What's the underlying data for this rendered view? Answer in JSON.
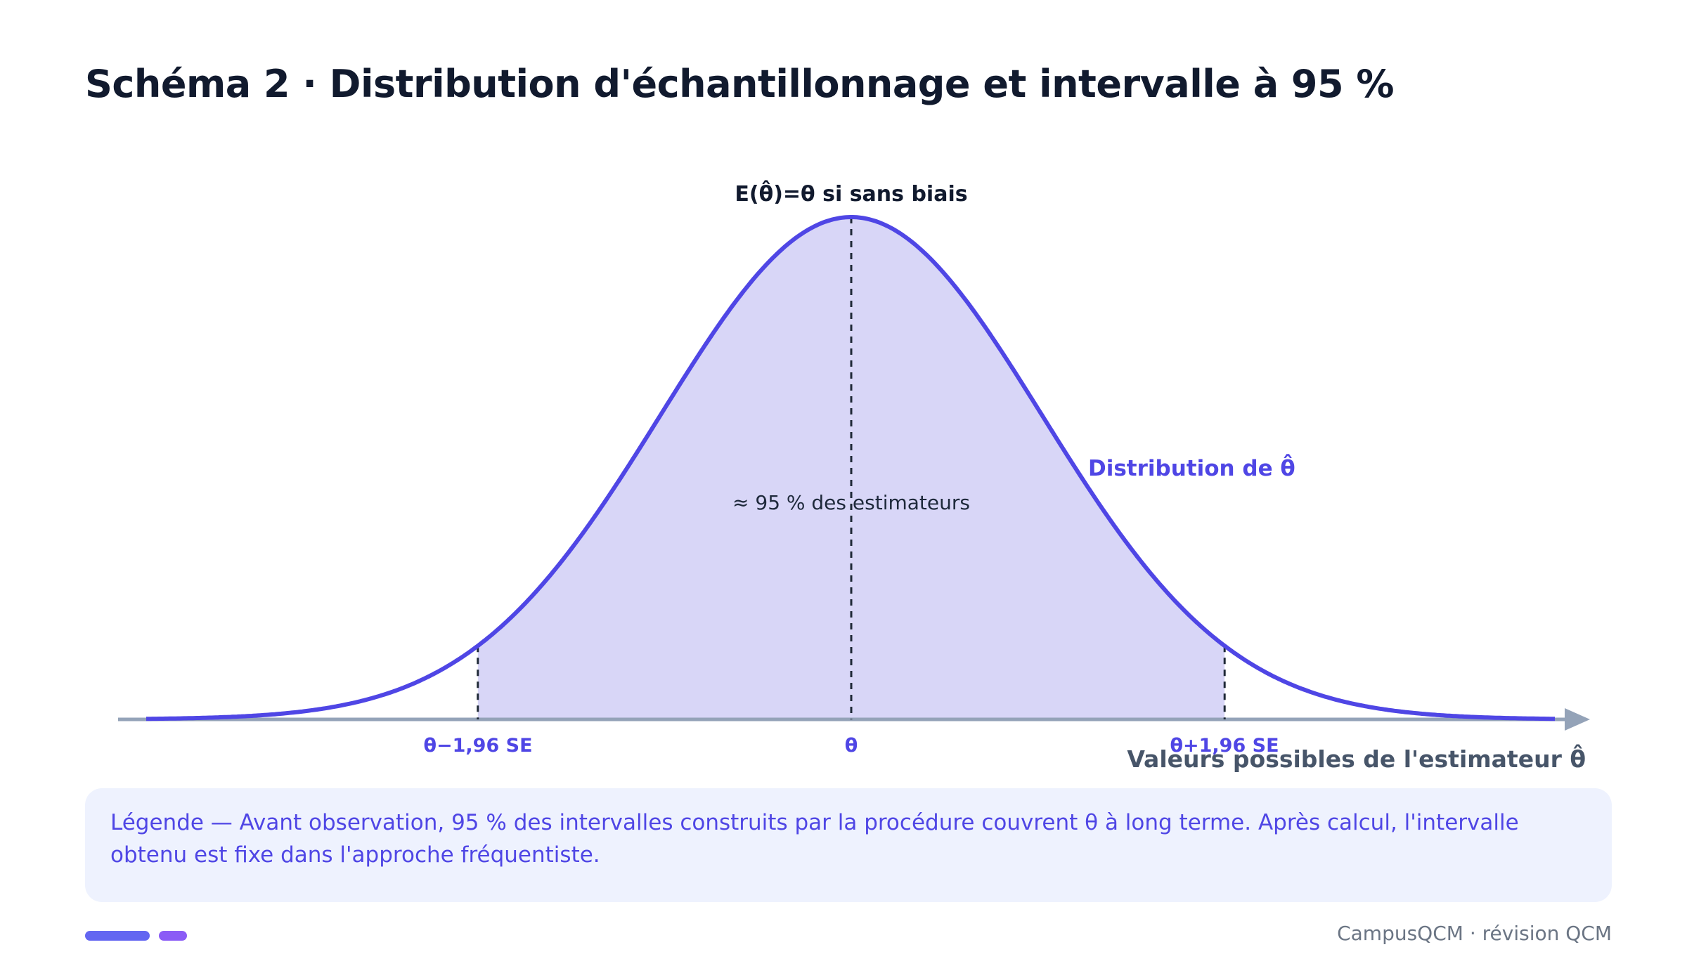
{
  "title": "Schéma 2 · Distribution d'échantillonnage et intervalle à 95 %",
  "diagram": {
    "peak_label": "E(θ̂)=θ si sans biais",
    "curve_label": "Distribution de θ̂",
    "area_label": "≈ 95 % des estimateurs",
    "x_axis_label": "Valeurs possibles de l'estimateur θ̂",
    "ticks": {
      "left": "θ−1,96 SE",
      "center": "θ",
      "right": "θ+1,96 SE"
    },
    "shaded_z": [
      -1.96,
      1.96
    ],
    "colors": {
      "curve": "#4f46e5",
      "fill": "#d8d6f7",
      "axis": "#94a3b8",
      "guide": "#1f2937"
    }
  },
  "legend": {
    "text": "Légende — Avant observation, 95 % des intervalles construits par la procédure couvrent θ à long terme. Après calcul, l'intervalle obtenu est fixe dans l'approche fréquentiste."
  },
  "footer": {
    "brand": "CampusQCM · révision QCM"
  }
}
